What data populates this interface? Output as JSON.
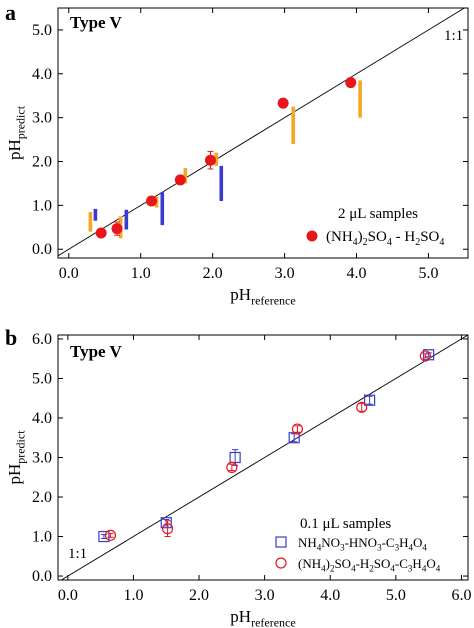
{
  "chart_data": [
    {
      "panel_label": "a",
      "type": "scatter",
      "annotation": "Type V",
      "xlabel": {
        "main": "pH",
        "sub": "reference"
      },
      "ylabel": {
        "main": "pH",
        "sub": "predict"
      },
      "xlim": [
        -0.15,
        5.55
      ],
      "ylim": [
        -0.2,
        5.5
      ],
      "xticks": [
        0,
        1,
        2,
        3,
        4,
        5
      ],
      "yticks": [
        0,
        1,
        2,
        3,
        4,
        5
      ],
      "xtick_labels": [
        "0.0",
        "1.0",
        "2.0",
        "3.0",
        "4.0",
        "5.0"
      ],
      "ytick_labels": [
        "0.0",
        "1.0",
        "2.0",
        "3.0",
        "4.0",
        "5.0"
      ],
      "line_label": "1:1",
      "legend": {
        "title": "2 μL samples",
        "entry": {
          "marker": "filled-circle",
          "label_parts": [
            "(NH",
            "4",
            ")",
            "2",
            "SO",
            "4",
            " - H",
            "2",
            "SO",
            "4"
          ]
        }
      },
      "colors": {
        "points": "#e8161b",
        "bar_orange": "#f5a623",
        "bar_blue": "#3a3acd",
        "errorbar": "#e8161b"
      },
      "series": [
        {
          "marker": "filled-circle",
          "x": [
            0.45,
            0.67,
            1.15,
            1.55,
            1.97,
            2.98,
            3.92
          ],
          "y": [
            0.37,
            0.47,
            1.1,
            1.58,
            2.03,
            3.33,
            3.8
          ],
          "yerr": [
            0.04,
            0.15,
            0.06,
            0.05,
            0.2,
            0.06,
            0.05
          ]
        }
      ],
      "bars": [
        {
          "x": 0.3,
          "y0": 0.4,
          "y1": 0.85,
          "color": "orange"
        },
        {
          "x": 0.37,
          "y0": 0.65,
          "y1": 0.92,
          "color": "blue"
        },
        {
          "x": 0.72,
          "y0": 0.25,
          "y1": 0.75,
          "color": "orange"
        },
        {
          "x": 0.8,
          "y0": 0.45,
          "y1": 0.9,
          "color": "blue"
        },
        {
          "x": 1.22,
          "y0": 0.95,
          "y1": 1.2,
          "color": "orange"
        },
        {
          "x": 1.3,
          "y0": 0.55,
          "y1": 1.3,
          "color": "blue"
        },
        {
          "x": 1.62,
          "y0": 1.5,
          "y1": 1.85,
          "color": "orange"
        },
        {
          "x": 2.05,
          "y0": 1.9,
          "y1": 2.2,
          "color": "orange"
        },
        {
          "x": 2.12,
          "y0": 1.1,
          "y1": 1.9,
          "color": "blue"
        },
        {
          "x": 3.12,
          "y0": 2.4,
          "y1": 3.25,
          "color": "orange"
        },
        {
          "x": 4.05,
          "y0": 3.0,
          "y1": 3.85,
          "color": "orange"
        }
      ]
    },
    {
      "panel_label": "b",
      "type": "scatter",
      "annotation": "Type V",
      "xlabel": {
        "main": "pH",
        "sub": "reference"
      },
      "ylabel": {
        "main": "pH",
        "sub": "predict"
      },
      "xlim": [
        -0.15,
        6.1
      ],
      "ylim": [
        -0.1,
        6.1
      ],
      "xticks": [
        0,
        1,
        2,
        3,
        4,
        5,
        6
      ],
      "yticks": [
        0,
        1,
        2,
        3,
        4,
        5,
        6
      ],
      "xtick_labels": [
        "0.0",
        "1.0",
        "2.0",
        "3.0",
        "4.0",
        "5.0",
        "6.0"
      ],
      "ytick_labels": [
        "0.0",
        "1.0",
        "2.0",
        "3.0",
        "4.0",
        "5.0",
        "6.0"
      ],
      "line_label": "1:1",
      "legend": {
        "title": "0.1 μL samples",
        "entries": [
          {
            "marker": "open-square",
            "label_parts": [
              "NH",
              "4",
              "NO",
              "3",
              "-HNO",
              "3",
              "-C",
              "3",
              "H",
              "4",
              "O",
              "4"
            ]
          },
          {
            "marker": "open-circle",
            "label_parts": [
              "(NH",
              "4",
              ")",
              "2",
              "SO",
              "4",
              "-H",
              "2",
              "SO",
              "4",
              "-C",
              "3",
              "H",
              "4",
              "O",
              "4"
            ]
          }
        ]
      },
      "colors": {
        "square": "#3a3acd",
        "circle": "#e8161b"
      },
      "series": [
        {
          "marker": "open-square",
          "x": [
            0.55,
            1.5,
            2.55,
            3.45,
            4.6,
            5.5
          ],
          "y": [
            1.0,
            1.35,
            3.0,
            3.5,
            4.45,
            5.6
          ],
          "yerr": [
            0.05,
            0.08,
            0.2,
            0.1,
            0.1,
            0.05
          ]
        },
        {
          "marker": "open-circle",
          "x": [
            0.65,
            1.52,
            2.5,
            3.5,
            4.48,
            5.45
          ],
          "y": [
            1.03,
            1.2,
            2.75,
            3.72,
            4.27,
            5.57
          ],
          "yerr": [
            0.05,
            0.2,
            0.08,
            0.08,
            0.1,
            0.05
          ]
        }
      ]
    }
  ]
}
